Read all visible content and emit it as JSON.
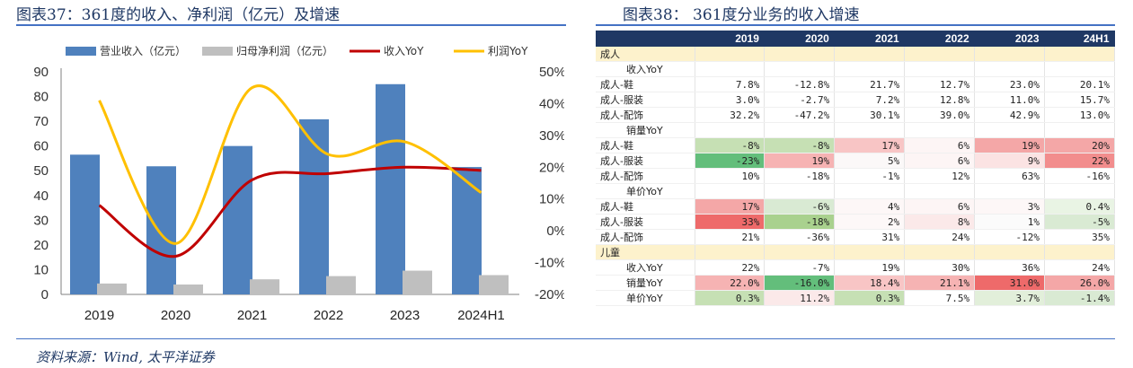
{
  "left_title": "图表37：361度的收入、净利润（亿元）及增速",
  "right_title": "图表38：  361度分业务的收入增速",
  "source": "资料来源：Wind, 太平洋证券",
  "colors": {
    "revenue": "#4f81bd",
    "profit": "#bfbfbf",
    "revenue_yoy": "#c00000",
    "profit_yoy": "#ffc000",
    "header_bg": "#1f3864",
    "section_bg": "#fdf2cc"
  },
  "chart_data": {
    "type": "bar",
    "categories": [
      "2019",
      "2020",
      "2021",
      "2022",
      "2023",
      "2024H1"
    ],
    "series": [
      {
        "name": "营业收入（亿元）",
        "type": "bar",
        "axis": "left",
        "values": [
          56.5,
          51.8,
          60.0,
          70.8,
          85.0,
          51.5
        ]
      },
      {
        "name": "归母净利润（亿元）",
        "type": "bar",
        "axis": "left",
        "values": [
          4.4,
          4.0,
          6.1,
          7.4,
          9.6,
          7.8
        ]
      },
      {
        "name": "收入YoY",
        "type": "line",
        "axis": "right",
        "values": [
          0.08,
          -0.08,
          0.16,
          0.18,
          0.2,
          0.19
        ]
      },
      {
        "name": "利润YoY",
        "type": "line",
        "axis": "right",
        "values": [
          0.41,
          -0.04,
          0.45,
          0.24,
          0.28,
          0.12
        ]
      }
    ],
    "ylim_left": [
      0,
      90
    ],
    "left_ticks": [
      "0",
      "10",
      "20",
      "30",
      "40",
      "50",
      "60",
      "70",
      "80",
      "90"
    ],
    "ylim_right": [
      -0.2,
      0.5
    ],
    "right_ticks": [
      "-20%",
      "-10%",
      "0%",
      "10%",
      "20%",
      "30%",
      "40%",
      "50%"
    ],
    "legend_position": "top",
    "grid": false
  },
  "table": {
    "columns": [
      "",
      "2019",
      "2020",
      "2021",
      "2022",
      "2023",
      "24H1"
    ],
    "rows": [
      {
        "kind": "section",
        "label": "成人"
      },
      {
        "kind": "sub",
        "label": "收入YoY"
      },
      {
        "kind": "data",
        "label": "成人-鞋",
        "values": [
          "7.8%",
          "-12.8%",
          "21.7%",
          "12.7%",
          "23.0%",
          "20.1%"
        ]
      },
      {
        "kind": "data",
        "label": "成人-服装",
        "values": [
          "3.0%",
          "-2.7%",
          "7.2%",
          "12.8%",
          "11.0%",
          "15.7%"
        ]
      },
      {
        "kind": "data",
        "label": "成人-配饰",
        "values": [
          "32.2%",
          "-47.2%",
          "30.1%",
          "39.0%",
          "42.9%",
          "13.0%"
        ]
      },
      {
        "kind": "sub",
        "label": "销量YoY"
      },
      {
        "kind": "data",
        "label": "成人-鞋",
        "values": [
          "-8%",
          "-8%",
          "17%",
          "6%",
          "19%",
          "20%"
        ],
        "colors": [
          "#c6e0b4",
          "#c6e0b4",
          "#f8c5c5",
          "#fdf5f5",
          "#f4a7a7",
          "#f4a7a7"
        ]
      },
      {
        "kind": "data",
        "label": "成人-服装",
        "values": [
          "-23%",
          "19%",
          "5%",
          "6%",
          "9%",
          "22%"
        ],
        "colors": [
          "#63be7b",
          "#f6b3b3",
          "#fbf8f8",
          "#fdf5f5",
          "#fbe3e3",
          "#f28d8d"
        ]
      },
      {
        "kind": "data",
        "label": "成人-配饰",
        "values": [
          "10%",
          "-18%",
          "-1%",
          "12%",
          "63%",
          "-16%"
        ]
      },
      {
        "kind": "sub",
        "label": "单价YoY"
      },
      {
        "kind": "data",
        "label": "成人-鞋",
        "values": [
          "17%",
          "-6%",
          "4%",
          "6%",
          "3%",
          "0.4%"
        ],
        "colors": [
          "#f4a7a7",
          "#d9ead3",
          "#fdf7f7",
          "#fdf5f5",
          "#fdf7f7",
          "#e9f4e4"
        ]
      },
      {
        "kind": "data",
        "label": "成人-服装",
        "values": [
          "33%",
          "-18%",
          "2%",
          "8%",
          "1%",
          "-5%"
        ],
        "colors": [
          "#ee6a6a",
          "#a9d18e",
          "#fdf8f8",
          "#fbe9e9",
          "#fbfbfb",
          "#d9ead3"
        ]
      },
      {
        "kind": "data",
        "label": "成人-配饰",
        "values": [
          "21%",
          "-36%",
          "31%",
          "24%",
          "-12%",
          "35%"
        ]
      },
      {
        "kind": "section",
        "label": "儿童"
      },
      {
        "kind": "data",
        "label": "收入YoY",
        "indent": true,
        "values": [
          "22%",
          "-7%",
          "19%",
          "30%",
          "36%",
          "24%"
        ]
      },
      {
        "kind": "data",
        "label": "销量YoY",
        "indent": true,
        "values": [
          "22.0%",
          "-16.0%",
          "18.4%",
          "21.1%",
          "31.0%",
          "26.0%"
        ],
        "colors": [
          "#f6b3b3",
          "#63be7b",
          "#f8c5c5",
          "#f6b3b3",
          "#ee6a6a",
          "#f4a7a7"
        ]
      },
      {
        "kind": "data",
        "label": "单价YoY",
        "indent": true,
        "values": [
          "0.3%",
          "11.2%",
          "0.3%",
          "7.5%",
          "3.7%",
          "-1.4%"
        ],
        "colors": [
          "#c6e0b4",
          "#fbe9e9",
          "#c6e0b4",
          "#ffffff",
          "#e2efda",
          "#d9ead3"
        ]
      }
    ]
  }
}
